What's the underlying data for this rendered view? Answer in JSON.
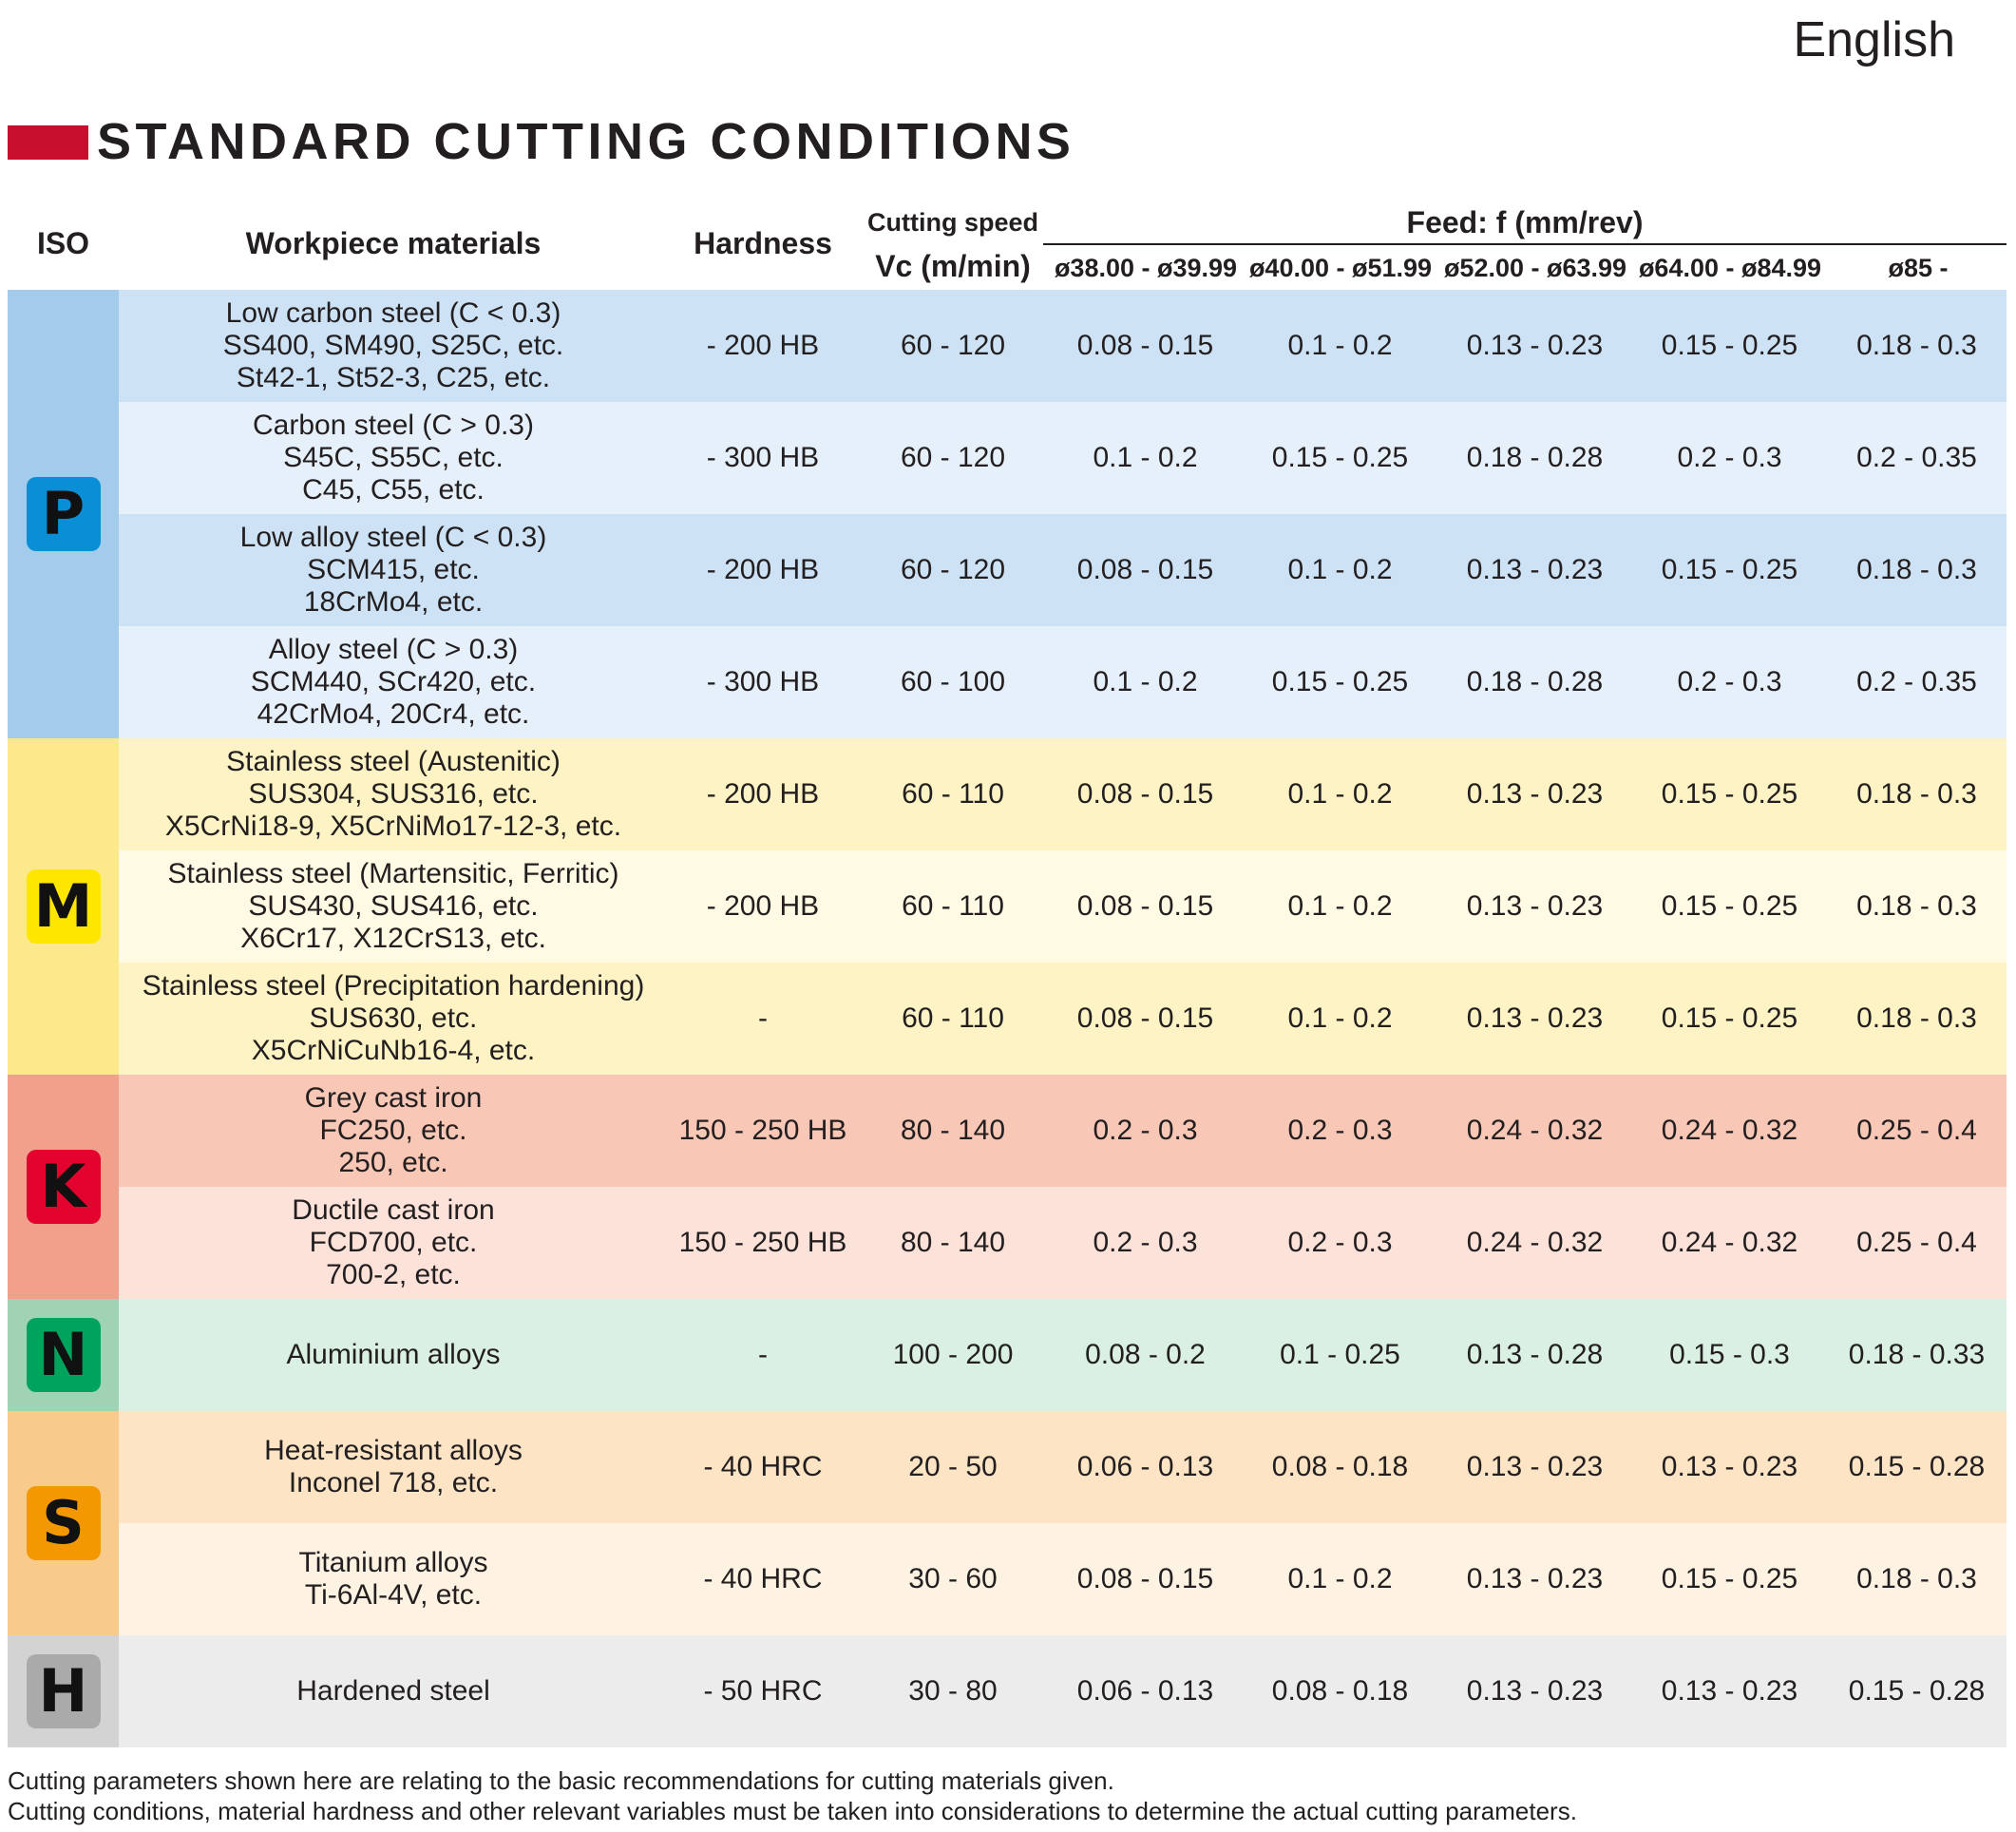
{
  "page": {
    "language": "English",
    "title": "STANDARD CUTTING CONDITIONS",
    "title_color": "#c8102e"
  },
  "header": {
    "iso": "ISO",
    "material": "Workpiece materials",
    "hardness": "Hardness",
    "speed_line1": "Cutting speed",
    "speed_line2": "Vc (m/min)",
    "feed": "Feed: f (mm/rev)",
    "diameters": [
      "ø38.00 - ø39.99",
      "ø40.00 - ø51.99",
      "ø52.00 - ø63.99",
      "ø64.00 - ø84.99",
      "ø85 -"
    ]
  },
  "groups": [
    {
      "iso": "P",
      "badge_color": "#0a8fd6",
      "iso_bg": "#a3cbec",
      "row_bg": [
        "#cde2f5",
        "#e6f0fa"
      ],
      "rows": [
        {
          "material": [
            "Low carbon steel (C < 0.3)",
            "SS400, SM490, S25C, etc.",
            "St42-1, St52-3, C25, etc."
          ],
          "hardness": "- 200 HB",
          "speed": "60 - 120",
          "feeds": [
            "0.08 - 0.15",
            "0.1 - 0.2",
            "0.13 - 0.23",
            "0.15 - 0.25",
            "0.18 - 0.3"
          ]
        },
        {
          "material": [
            "Carbon steel (C > 0.3)",
            "S45C, S55C, etc.",
            "C45, C55, etc."
          ],
          "hardness": "- 300 HB",
          "speed": "60 - 120",
          "feeds": [
            "0.1 - 0.2",
            "0.15 - 0.25",
            "0.18 - 0.28",
            "0.2 - 0.3",
            "0.2 - 0.35"
          ]
        },
        {
          "material": [
            "Low alloy steel (C < 0.3)",
            "SCM415, etc.",
            "18CrMo4, etc."
          ],
          "hardness": "- 200 HB",
          "speed": "60 - 120",
          "feeds": [
            "0.08 - 0.15",
            "0.1 - 0.2",
            "0.13 - 0.23",
            "0.15 - 0.25",
            "0.18 - 0.3"
          ]
        },
        {
          "material": [
            "Alloy steel (C > 0.3)",
            "SCM440, SCr420, etc.",
            "42CrMo4, 20Cr4, etc."
          ],
          "hardness": "- 300 HB",
          "speed": "60 - 100",
          "feeds": [
            "0.1 - 0.2",
            "0.15 - 0.25",
            "0.18 - 0.28",
            "0.2 - 0.3",
            "0.2 - 0.35"
          ]
        }
      ]
    },
    {
      "iso": "M",
      "badge_color": "#ffe600",
      "iso_bg": "#fbe98c",
      "row_bg": [
        "#fdf3c4",
        "#fefae3"
      ],
      "rows": [
        {
          "material": [
            "Stainless steel (Austenitic)",
            "SUS304, SUS316, etc.",
            "X5CrNi18-9, X5CrNiMo17-12-3, etc."
          ],
          "hardness": "- 200 HB",
          "speed": "60 - 110",
          "feeds": [
            "0.08 - 0.15",
            "0.1 - 0.2",
            "0.13 - 0.23",
            "0.15 - 0.25",
            "0.18 - 0.3"
          ]
        },
        {
          "material": [
            "Stainless steel (Martensitic, Ferritic)",
            "SUS430, SUS416, etc.",
            "X6Cr17, X12CrS13, etc."
          ],
          "hardness": "- 200 HB",
          "speed": "60 - 110",
          "feeds": [
            "0.08 - 0.15",
            "0.1 - 0.2",
            "0.13 - 0.23",
            "0.15 - 0.25",
            "0.18 - 0.3"
          ]
        },
        {
          "material": [
            "Stainless steel (Precipitation hardening)",
            "SUS630, etc.",
            "X5CrNiCuNb16-4, etc."
          ],
          "hardness": "-",
          "speed": "60 - 110",
          "feeds": [
            "0.08 - 0.15",
            "0.1 - 0.2",
            "0.13 - 0.23",
            "0.15 - 0.25",
            "0.18 - 0.3"
          ]
        }
      ]
    },
    {
      "iso": "K",
      "badge_color": "#e4032e",
      "iso_bg": "#f0a08b",
      "row_bg": [
        "#f8c7b5",
        "#fce2d9"
      ],
      "rows": [
        {
          "material": [
            "Grey cast iron",
            "FC250, etc.",
            "250, etc."
          ],
          "hardness": "150 - 250 HB",
          "speed": "80 - 140",
          "feeds": [
            "0.2 - 0.3",
            "0.2 - 0.3",
            "0.24 - 0.32",
            "0.24 - 0.32",
            "0.25 - 0.4"
          ]
        },
        {
          "material": [
            "Ductile cast iron",
            "FCD700, etc.",
            "700-2, etc."
          ],
          "hardness": "150 - 250 HB",
          "speed": "80 - 140",
          "feeds": [
            "0.2 - 0.3",
            "0.2 - 0.3",
            "0.24 - 0.32",
            "0.24 - 0.32",
            "0.25 - 0.4"
          ]
        }
      ]
    },
    {
      "iso": "N",
      "badge_color": "#00a35c",
      "iso_bg": "#9fd3b4",
      "row_bg": [
        "#daf0e3"
      ],
      "rows": [
        {
          "material": [
            "Aluminium alloys"
          ],
          "hardness": "-",
          "speed": "100 - 200",
          "feeds": [
            "0.08 - 0.2",
            "0.1 - 0.25",
            "0.13 - 0.28",
            "0.15 - 0.3",
            "0.18 - 0.33"
          ]
        }
      ]
    },
    {
      "iso": "S",
      "badge_color": "#f39800",
      "iso_bg": "#f8ca8c",
      "row_bg": [
        "#fce4c4",
        "#fef2e2"
      ],
      "rows": [
        {
          "material": [
            "Heat-resistant alloys",
            "Inconel 718, etc."
          ],
          "hardness": "- 40 HRC",
          "speed": "20 - 50",
          "feeds": [
            "0.06 - 0.13",
            "0.08 - 0.18",
            "0.13 - 0.23",
            "0.13 - 0.23",
            "0.15 - 0.28"
          ]
        },
        {
          "material": [
            "Titanium alloys",
            "Ti-6Al-4V, etc."
          ],
          "hardness": "- 40 HRC",
          "speed": "30 - 60",
          "feeds": [
            "0.08 - 0.15",
            "0.1 - 0.2",
            "0.13 - 0.23",
            "0.15 - 0.25",
            "0.18 - 0.3"
          ]
        }
      ]
    },
    {
      "iso": "H",
      "badge_color": "#aaaaaa",
      "iso_bg": "#d3d3d3",
      "row_bg": [
        "#ececec"
      ],
      "rows": [
        {
          "material": [
            "Hardened steel"
          ],
          "hardness": "- 50 HRC",
          "speed": "30 - 80",
          "feeds": [
            "0.06 - 0.13",
            "0.08 - 0.18",
            "0.13 - 0.23",
            "0.13 - 0.23",
            "0.15 - 0.28"
          ]
        }
      ]
    }
  ],
  "footnotes": [
    "Cutting parameters shown here are relating to the basic recommendations for cutting materials given.",
    "Cutting conditions, material hardness and other relevant variables must be taken into considerations to determine the actual cutting parameters."
  ]
}
